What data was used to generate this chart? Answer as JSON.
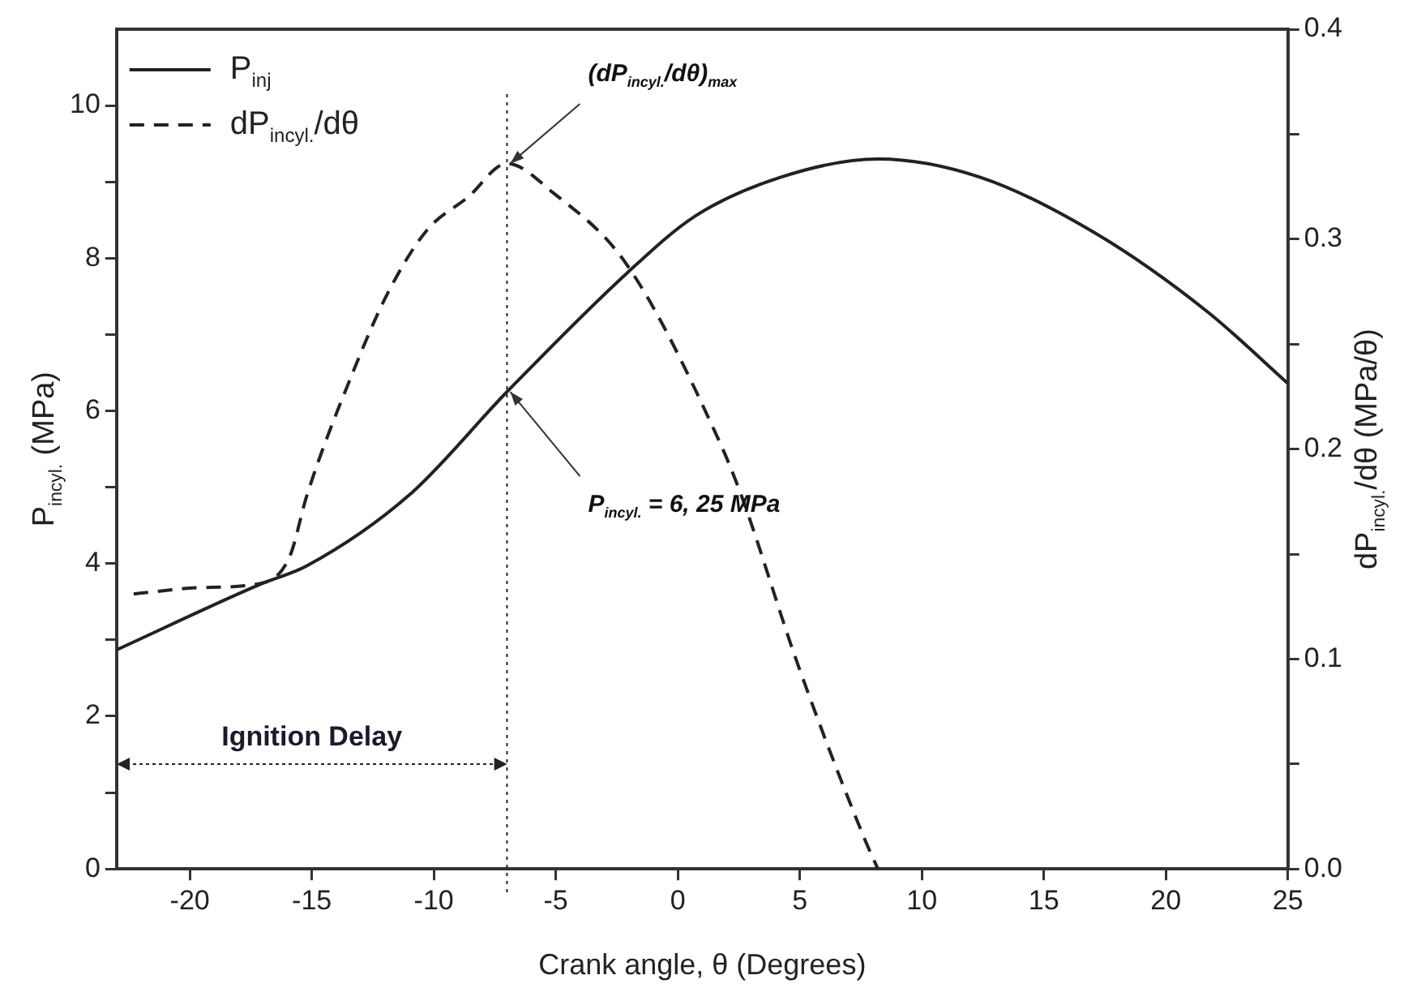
{
  "chart_data": {
    "type": "line",
    "xlabel": "Crank angle, θ (Degrees)",
    "ylabel": "P$_{incyl.}$ (MPa)",
    "y2label": "dP$_{incyl.}$/dθ (MPa/θ)",
    "xlim": [
      -23,
      25
    ],
    "xticks": [
      -20,
      -15,
      -10,
      -5,
      0,
      5,
      10,
      15,
      20,
      25
    ],
    "ylim": [
      0,
      11
    ],
    "yticks": [
      0,
      {
        "value": 1,
        "label": null
      },
      2,
      {
        "value": 3,
        "label": null
      },
      4,
      {
        "value": 5,
        "label": null
      },
      6,
      {
        "value": 7,
        "label": null
      },
      8,
      {
        "value": 9,
        "label": null
      },
      10
    ],
    "y2lim": [
      0,
      0.4
    ],
    "y2ticks": [
      "0.0",
      {
        "value": 0.05,
        "label": null
      },
      0.1,
      {
        "value": 0.15,
        "label": null
      },
      0.2,
      {
        "value": 0.25,
        "label": null
      },
      0.3,
      {
        "value": 0.35,
        "label": null
      },
      0.4
    ],
    "series": [
      {
        "name": "P$_{inj}$",
        "color": "#222222",
        "line_style": "solid",
        "x": [
          -23,
          -17.1,
          -15.2,
          -11,
          -7,
          -2.1,
          0.7,
          4.2,
          8.2,
          12.4,
          17.1,
          21.7,
          25
        ],
        "values": [
          2.87,
          3.73,
          3.97,
          4.9,
          6.25,
          7.8,
          8.55,
          9.06,
          9.3,
          9.06,
          8.33,
          7.3,
          6.36
        ]
      },
      {
        "name": "dP$_{incyl.}$/dθ",
        "color": "#222222",
        "line_style": "dashed",
        "axis": "y2",
        "x": [
          -22.3,
          -19.6,
          -17.1,
          -15.9,
          -15.2,
          -13.3,
          -11.9,
          -10.3,
          -8.6,
          -7,
          -5.1,
          -2.1,
          1.65,
          2.6,
          4.9,
          7.7,
          8.2
        ],
        "values": [
          0.131,
          0.134,
          0.136,
          0.149,
          0.178,
          0.237,
          0.274,
          0.304,
          0.32,
          0.336,
          0.322,
          0.288,
          0.205,
          0.178,
          0.098,
          0.013,
          0.0
        ]
      }
    ],
    "ref_lines": [
      {
        "axis": "x",
        "value": -7,
        "line_style": "dotted"
      }
    ],
    "annotations": [
      {
        "text": "(dP$_{incyl.}$/dθ)$_{max}$",
        "x": -7,
        "y": 9.24
      },
      {
        "text": "P$_{incyl.}$ = 6, 25 MPa",
        "x": -7,
        "y": 6.25
      },
      "Ignition Delay"
    ],
    "legend": "top left",
    "grid": false,
    "marker": "none"
  }
}
